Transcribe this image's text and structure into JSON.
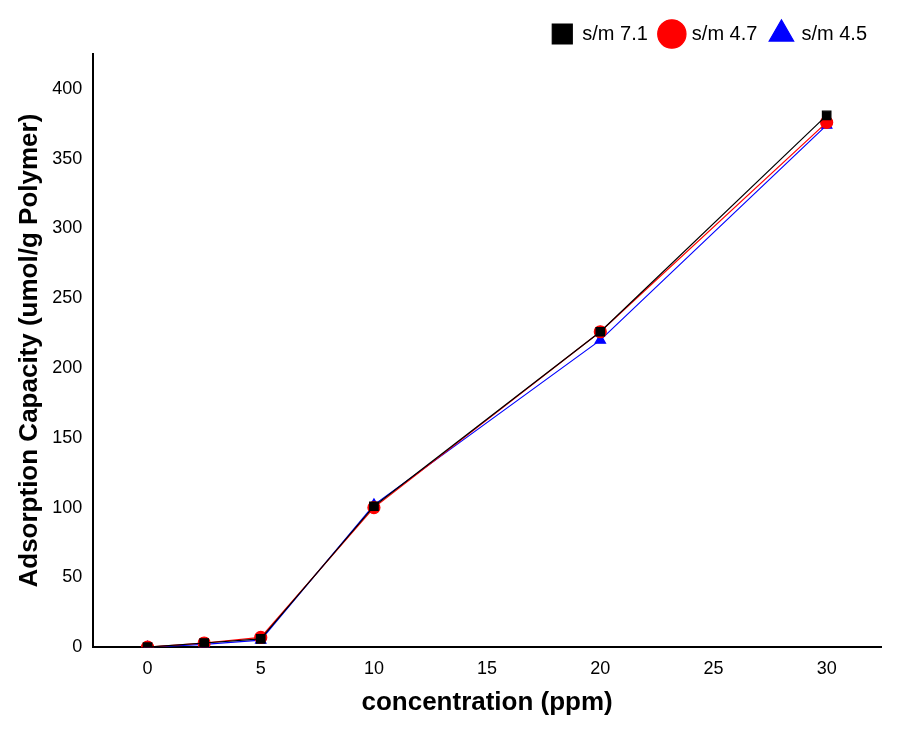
{
  "chart_data": {
    "type": "line",
    "x_label": "concentration (ppm)",
    "y_label": "Adsorption Capacity (umol/g Polymer)",
    "x": [
      0,
      2.5,
      5,
      10,
      20,
      30
    ],
    "series": [
      {
        "name": "s/m 7.1",
        "color": "#000000",
        "marker": "square",
        "values": [
          0,
          3,
          6,
          101,
          226,
          381
        ]
      },
      {
        "name": "s/m 4.7",
        "color": "#ff0000",
        "marker": "circle",
        "values": [
          0,
          3,
          7,
          100,
          226,
          376
        ]
      },
      {
        "name": "s/m 4.5",
        "color": "#0000ff",
        "marker": "triangle",
        "values": [
          0,
          2,
          5,
          102,
          220,
          374
        ]
      }
    ],
    "xlim": [
      -2.4,
      32.4
    ],
    "xticks": [
      0,
      5,
      10,
      15,
      20,
      25,
      30
    ],
    "ylim": [
      0,
      425
    ],
    "yticks": [
      0,
      50,
      100,
      150,
      200,
      250,
      300,
      350,
      400
    ],
    "grid": false,
    "legend": "upper right"
  }
}
